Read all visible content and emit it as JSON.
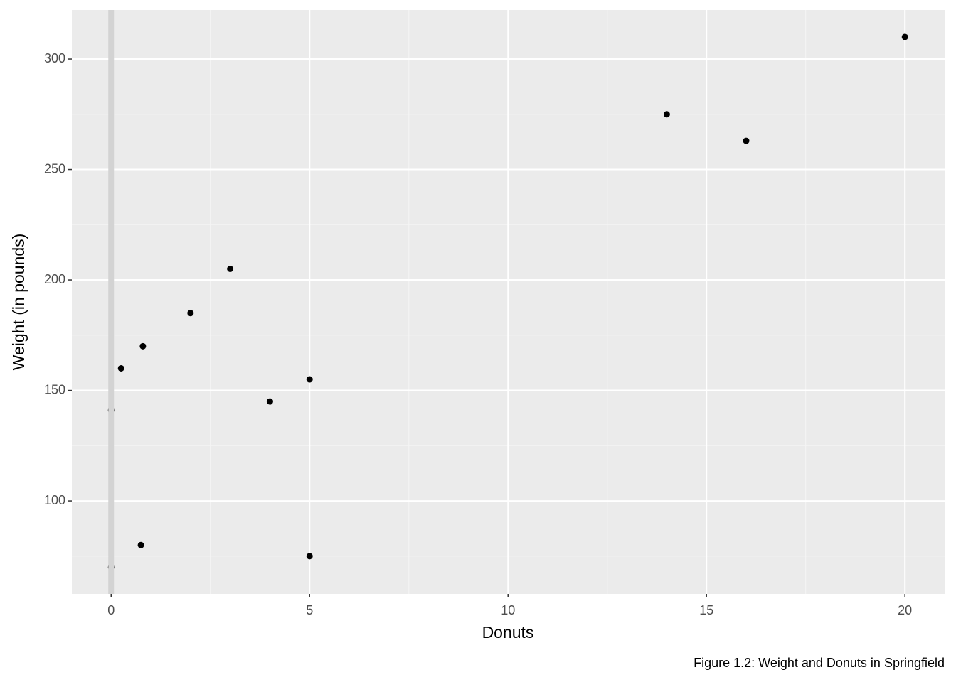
{
  "chart_data": {
    "type": "scatter",
    "x_label": "Donuts",
    "y_label": "Weight (in pounds)",
    "caption": "Figure 1.2: Weight and Donuts in Springfield",
    "x": [
      0,
      0,
      0.25,
      0.8,
      0.75,
      2,
      3,
      4,
      5,
      5,
      14,
      16,
      20
    ],
    "values": [
      141,
      70,
      160,
      170,
      80,
      185,
      205,
      145,
      155,
      75,
      275,
      263,
      310
    ],
    "color": "#000000",
    "xlim": [
      -0.99,
      21
    ],
    "ylim": [
      57.9,
      322.2
    ],
    "xticks": [
      0,
      5,
      10,
      15,
      20
    ],
    "yticks": [
      100,
      150,
      200,
      250,
      300
    ],
    "xminor": [
      2.5,
      7.5,
      12.5,
      17.5
    ],
    "yminor": [
      75,
      125,
      175,
      225,
      275
    ],
    "grid": true,
    "vline": {
      "x": 0,
      "color": "#d3d3d3"
    }
  }
}
